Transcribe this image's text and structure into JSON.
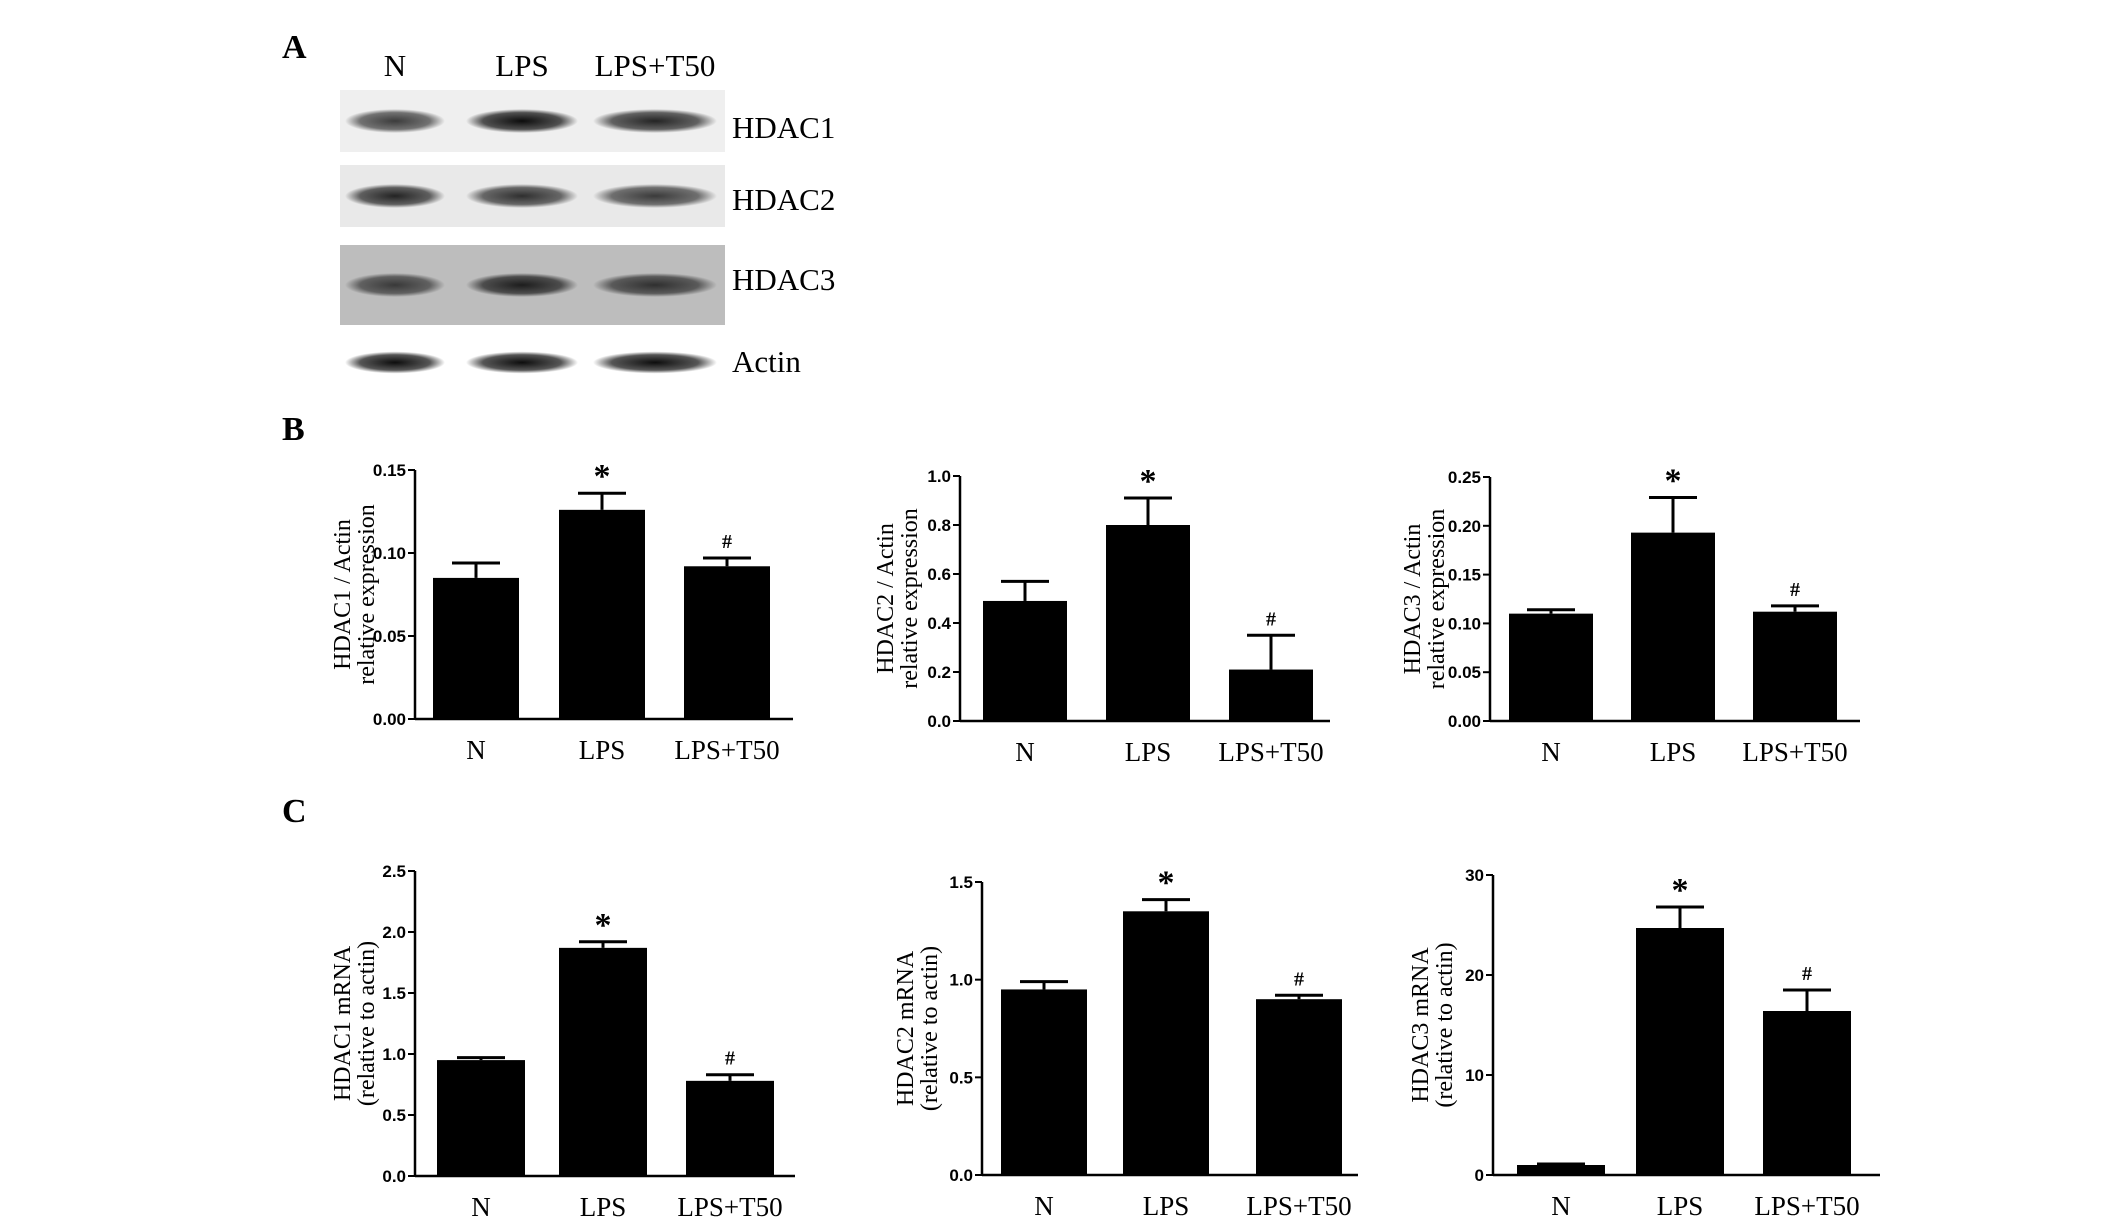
{
  "panels": {
    "A": "A",
    "B": "B",
    "C": "C"
  },
  "blot": {
    "lanes": [
      "N",
      "LPS",
      "LPS+T50"
    ],
    "bands": [
      {
        "label": "HDAC1",
        "intensity": [
          0.75,
          0.95,
          0.85
        ],
        "bg": "#efefef"
      },
      {
        "label": "HDAC2",
        "intensity": [
          0.85,
          0.8,
          0.75
        ],
        "bg": "#e9e9e9"
      },
      {
        "label": "HDAC3",
        "intensity": [
          0.7,
          0.85,
          0.75
        ],
        "bg": "#bdbdbd"
      },
      {
        "label": "Actin",
        "intensity": [
          0.95,
          0.95,
          0.95
        ],
        "bg": "#ffffff"
      }
    ]
  },
  "chart_data": [
    {
      "type": "bar",
      "categories": [
        "N",
        "LPS",
        "LPS+T50"
      ],
      "values": [
        0.085,
        0.126,
        0.092
      ],
      "errors": [
        0.009,
        0.01,
        0.005
      ],
      "annotations": [
        "",
        "*",
        "#"
      ],
      "ylabel": [
        "HDAC1 / Actin",
        "relative expression"
      ],
      "ylim": [
        0,
        0.15
      ],
      "yticks": [
        "0.00",
        "0.05",
        "0.10",
        "0.15"
      ],
      "grid": false
    },
    {
      "type": "bar",
      "categories": [
        "N",
        "LPS",
        "LPS+T50"
      ],
      "values": [
        0.49,
        0.8,
        0.21
      ],
      "errors": [
        0.08,
        0.11,
        0.14
      ],
      "annotations": [
        "",
        "*",
        "#"
      ],
      "ylabel": [
        "HDAC2 / Actin",
        "relative expression"
      ],
      "ylim": [
        0,
        1.0
      ],
      "yticks": [
        "0.0",
        "0.2",
        "0.4",
        "0.6",
        "0.8",
        "1.0"
      ],
      "grid": false
    },
    {
      "type": "bar",
      "categories": [
        "N",
        "LPS",
        "LPS+T50"
      ],
      "values": [
        0.11,
        0.193,
        0.112
      ],
      "errors": [
        0.004,
        0.036,
        0.006
      ],
      "annotations": [
        "",
        "*",
        "#"
      ],
      "ylabel": [
        "HDAC3 / Actin",
        "relative expression"
      ],
      "ylim": [
        0,
        0.25
      ],
      "yticks": [
        "0.00",
        "0.05",
        "0.10",
        "0.15",
        "0.20",
        "0.25"
      ],
      "grid": false
    },
    {
      "type": "bar",
      "categories": [
        "N",
        "LPS",
        "LPS+T50"
      ],
      "values": [
        0.95,
        1.87,
        0.78
      ],
      "errors": [
        0.02,
        0.05,
        0.05
      ],
      "annotations": [
        "",
        "*",
        "#"
      ],
      "ylabel": [
        "HDAC1 mRNA",
        "(relative to actin)"
      ],
      "ylim": [
        0,
        2.5
      ],
      "yticks": [
        "0.0",
        "0.5",
        "1.0",
        "1.5",
        "2.0",
        "2.5"
      ],
      "grid": false
    },
    {
      "type": "bar",
      "categories": [
        "N",
        "LPS",
        "LPS+T50"
      ],
      "values": [
        0.95,
        1.35,
        0.9
      ],
      "errors": [
        0.04,
        0.06,
        0.02
      ],
      "annotations": [
        "",
        "*",
        "#"
      ],
      "ylabel": [
        "HDAC2 mRNA",
        "(relative to actin)"
      ],
      "ylim": [
        0,
        1.5
      ],
      "yticks": [
        "0.0",
        "0.5",
        "1.0",
        "1.5"
      ],
      "grid": false
    },
    {
      "type": "bar",
      "categories": [
        "N",
        "LPS",
        "LPS+T50"
      ],
      "values": [
        1.0,
        24.7,
        16.4
      ],
      "errors": [
        0.1,
        2.1,
        2.1
      ],
      "annotations": [
        "",
        "*",
        "#"
      ],
      "ylabel": [
        "HDAC3 mRNA",
        "(relative to actin)"
      ],
      "ylim": [
        0,
        30
      ],
      "yticks": [
        "0",
        "10",
        "20",
        "30"
      ],
      "grid": false
    }
  ]
}
